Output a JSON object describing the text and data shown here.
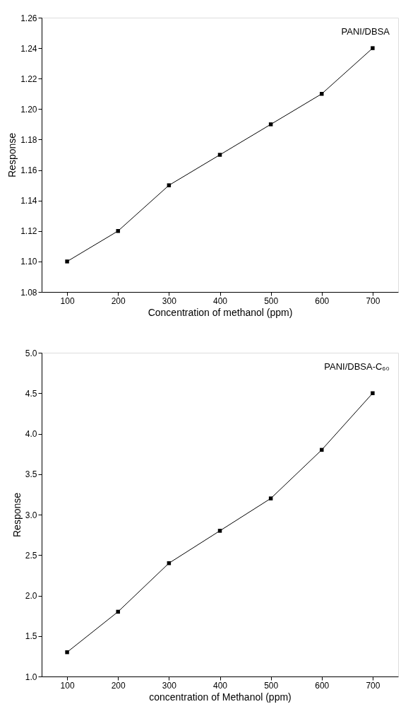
{
  "chart_data": [
    {
      "type": "line",
      "xlabel": "Concentration of methanol (ppm)",
      "ylabel": "Response",
      "x": [
        100,
        200,
        300,
        400,
        500,
        600,
        700
      ],
      "series": [
        {
          "color": "#000000",
          "values": [
            1.1,
            1.12,
            1.15,
            1.17,
            1.19,
            1.21,
            1.24
          ]
        }
      ],
      "xlim": [
        50,
        750
      ],
      "xticks": [
        100,
        200,
        300,
        400,
        500,
        600,
        700
      ],
      "ylim": [
        1.08,
        1.26
      ],
      "yticks": [
        {
          "value": 1.08,
          "label": "1.08"
        },
        {
          "value": 1.1,
          "label": "1.10"
        },
        {
          "value": 1.12,
          "label": "1.12"
        },
        {
          "value": 1.14,
          "label": "1.14"
        },
        {
          "value": 1.16,
          "label": "1.16"
        },
        {
          "value": 1.18,
          "label": "1.18"
        },
        {
          "value": 1.2,
          "label": "1.20"
        },
        {
          "value": 1.22,
          "label": "1.22"
        },
        {
          "value": 1.24,
          "label": "1.24"
        },
        {
          "value": 1.26,
          "label": "1.26"
        }
      ],
      "annotations": [
        "PANI/DBSA"
      ],
      "marker": "square",
      "line_style": "solid",
      "grid": false
    },
    {
      "type": "line",
      "xlabel": "concentration of Methanol (ppm)",
      "ylabel": "Response",
      "x": [
        100,
        200,
        300,
        400,
        500,
        600,
        700
      ],
      "series": [
        {
          "color": "#000000",
          "values": [
            1.3,
            1.8,
            2.4,
            2.8,
            3.2,
            3.8,
            4.5
          ]
        }
      ],
      "xlim": [
        50,
        750
      ],
      "xticks": [
        100,
        200,
        300,
        400,
        500,
        600,
        700
      ],
      "ylim": [
        1.0,
        5.0
      ],
      "yticks": [
        {
          "value": 1.0,
          "label": "1.0"
        },
        {
          "value": 1.5,
          "label": "1.5"
        },
        {
          "value": 2.0,
          "label": "2.0"
        },
        {
          "value": 2.5,
          "label": "2.5"
        },
        {
          "value": 3.0,
          "label": "3.0"
        },
        {
          "value": 3.5,
          "label": "3.5"
        },
        {
          "value": 4.0,
          "label": "4.0"
        },
        {
          "value": 4.5,
          "label": "4.5"
        },
        {
          "value": 5.0,
          "label": "5.0"
        }
      ],
      "annotations": [
        "PANI/DBSA-C₆₀"
      ],
      "marker": "square",
      "line_style": "solid",
      "grid": false
    }
  ]
}
